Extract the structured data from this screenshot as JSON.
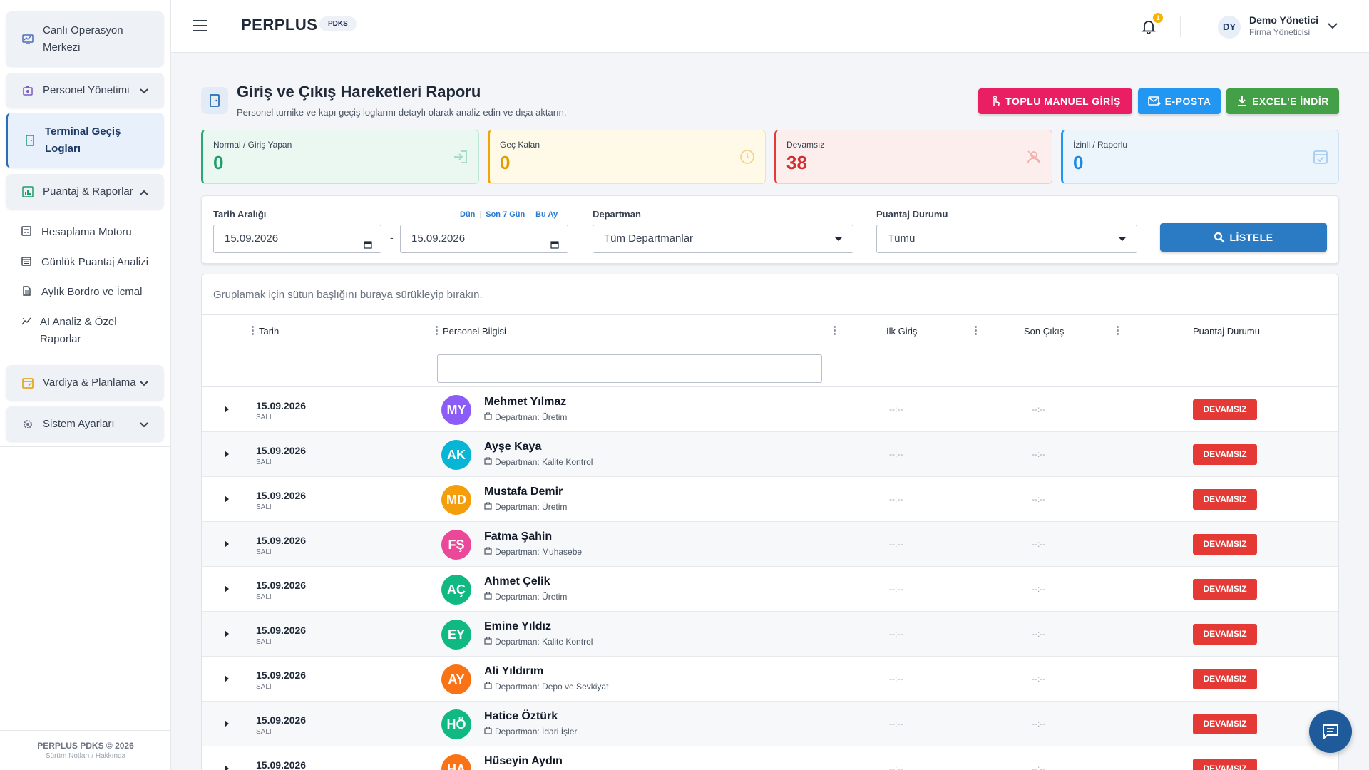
{
  "sidebar": {
    "items": [
      {
        "label": "Canlı Operasyon Merkezi"
      },
      {
        "label": "Personel Yönetimi"
      },
      {
        "label": "Terminal Geçiş Logları"
      },
      {
        "label": "Puantaj & Raporlar"
      },
      {
        "label": "Vardiya & Planlama"
      },
      {
        "label": "Sistem Ayarları"
      }
    ],
    "sub_items": [
      {
        "label": "Hesaplama Motoru"
      },
      {
        "label": "Günlük Puantaj Analizi"
      },
      {
        "label": "Aylık Bordro ve İcmal"
      },
      {
        "label": "AI Analiz & Özel Raporlar"
      }
    ],
    "footer": {
      "copyright": "PERPLUS PDKS © 2026",
      "links": "Sürüm Notları / Hakkında"
    }
  },
  "header": {
    "brand": "PERPLUS",
    "brand_tag": "PDKS",
    "notification_count": "1",
    "user": {
      "initials": "DY",
      "name": "Demo Yönetici",
      "role": "Firma Yöneticisi"
    }
  },
  "page": {
    "title": "Giriş ve Çıkış Hareketleri Raporu",
    "subtitle": "Personel turnike ve kapı geçiş loglarını detaylı olarak analiz edin ve dışa aktarın.",
    "buttons": {
      "bulk": "TOPLU MANUEL GİRİŞ",
      "email": "E-POSTA",
      "excel": "EXCEL'E İNDİR"
    }
  },
  "stats": [
    {
      "title": "Normal / Giriş Yapan",
      "value": "0"
    },
    {
      "title": "Geç Kalan",
      "value": "0"
    },
    {
      "title": "Devamsız",
      "value": "38"
    },
    {
      "title": "İzinli / Raporlu",
      "value": "0"
    }
  ],
  "filters": {
    "date_label": "Tarih Aralığı",
    "quick": {
      "day": "Dün",
      "week": "Son 7 Gün",
      "month": "Bu Ay"
    },
    "date_from": "15.09.2026",
    "date_to": "15.09.2026",
    "department_label": "Departman",
    "department_value": "Tüm Departmanlar",
    "status_label": "Puantaj Durumu",
    "status_value": "Tümü",
    "list_button": "LİSTELE"
  },
  "grid": {
    "group_hint": "Gruplamak için sütun başlığını buraya sürükleyip bırakın.",
    "columns": {
      "date": "Tarih",
      "person": "Personel Bilgisi",
      "first_in": "İlk Giriş",
      "last_out": "Son Çıkış",
      "status": "Puantaj Durumu"
    },
    "rows": [
      {
        "date": "15.09.2026",
        "day": "SALI",
        "initials": "MY",
        "name": "Mehmet Yılmaz",
        "dept": "Departman: Üretim",
        "first_in": "--:--",
        "last_out": "--:--",
        "status": "DEVAMSIZ"
      },
      {
        "date": "15.09.2026",
        "day": "SALI",
        "initials": "AK",
        "name": "Ayşe Kaya",
        "dept": "Departman: Kalite Kontrol",
        "first_in": "--:--",
        "last_out": "--:--",
        "status": "DEVAMSIZ"
      },
      {
        "date": "15.09.2026",
        "day": "SALI",
        "initials": "MD",
        "name": "Mustafa Demir",
        "dept": "Departman: Üretim",
        "first_in": "--:--",
        "last_out": "--:--",
        "status": "DEVAMSIZ"
      },
      {
        "date": "15.09.2026",
        "day": "SALI",
        "initials": "FŞ",
        "name": "Fatma Şahin",
        "dept": "Departman: Muhasebe",
        "first_in": "--:--",
        "last_out": "--:--",
        "status": "DEVAMSIZ"
      },
      {
        "date": "15.09.2026",
        "day": "SALI",
        "initials": "AÇ",
        "name": "Ahmet Çelik",
        "dept": "Departman: Üretim",
        "first_in": "--:--",
        "last_out": "--:--",
        "status": "DEVAMSIZ"
      },
      {
        "date": "15.09.2026",
        "day": "SALI",
        "initials": "EY",
        "name": "Emine Yıldız",
        "dept": "Departman: Kalite Kontrol",
        "first_in": "--:--",
        "last_out": "--:--",
        "status": "DEVAMSIZ"
      },
      {
        "date": "15.09.2026",
        "day": "SALI",
        "initials": "AY",
        "name": "Ali Yıldırım",
        "dept": "Departman: Depo ve Sevkiyat",
        "first_in": "--:--",
        "last_out": "--:--",
        "status": "DEVAMSIZ"
      },
      {
        "date": "15.09.2026",
        "day": "SALI",
        "initials": "HÖ",
        "name": "Hatice Öztürk",
        "dept": "Departman: İdari İşler",
        "first_in": "--:--",
        "last_out": "--:--",
        "status": "DEVAMSIZ"
      },
      {
        "date": "15.09.2026",
        "day": "",
        "initials": "HA",
        "name": "Hüseyin Aydın",
        "dept": "",
        "first_in": "--:--",
        "last_out": "--:--",
        "status": "DEVAMSIZ"
      }
    ]
  },
  "colors": {
    "avatars": [
      "#8b5cf6",
      "#06b6d4",
      "#f59e0b",
      "#ec4899",
      "#10b981",
      "#10b981",
      "#f97316",
      "#10b981",
      "#f97316"
    ],
    "absent": "#e53935",
    "primary": "#2a7bc4"
  }
}
